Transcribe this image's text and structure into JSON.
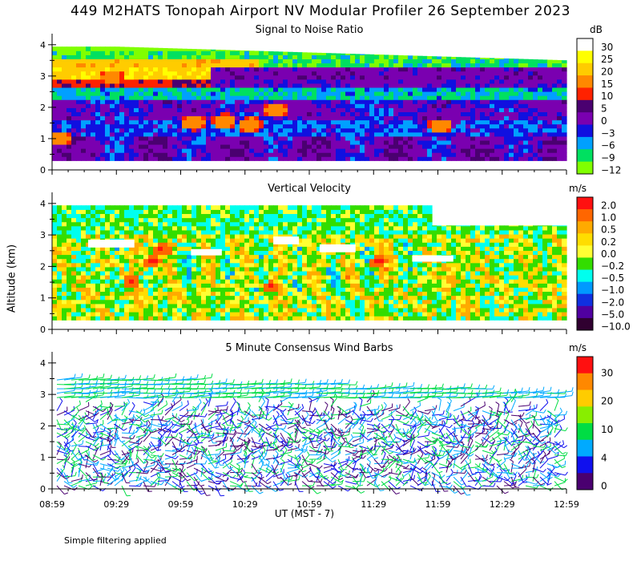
{
  "title": "449 M2HATS Tonopah Airport NV Modular Profiler 26 September 2023",
  "footnote": "Simple filtering applied",
  "ylabel": "Altitude (km)",
  "xlabel": "UT  (MST - 7)",
  "chart_data": [
    {
      "type": "heatmap",
      "title": "Signal to Noise Ratio",
      "unit": "dB",
      "x_ticks": [
        "08:59",
        "09:29",
        "09:59",
        "10:29",
        "10:59",
        "11:29",
        "11:59",
        "12:29",
        "12:59"
      ],
      "y_ticks": [
        "0",
        "1",
        "2",
        "3",
        "4"
      ],
      "ylim": [
        0,
        4.2
      ],
      "colorbar": {
        "labels": [
          "30",
          "25",
          "20",
          "15",
          "10",
          "5",
          "0",
          "−3",
          "−6",
          "−9",
          "−12"
        ],
        "colors": [
          "#ffffff",
          "#ffff00",
          "#ffcc00",
          "#ff8800",
          "#ff2200",
          "#4a0070",
          "#7a00b0",
          "#1010e0",
          "#00a0ff",
          "#00e060",
          "#80ff00"
        ]
      }
    },
    {
      "type": "heatmap",
      "title": "Vertical Velocity",
      "unit": "m/s",
      "x_ticks": [
        "08:59",
        "09:29",
        "09:59",
        "10:29",
        "10:59",
        "11:29",
        "11:59",
        "12:29",
        "12:59"
      ],
      "y_ticks": [
        "0",
        "1",
        "2",
        "3",
        "4"
      ],
      "ylim": [
        0,
        4.2
      ],
      "colorbar": {
        "labels": [
          "2.0",
          "1.0",
          "0.5",
          "0.2",
          "0.0",
          "−0.2",
          "−0.5",
          "−1.0",
          "−2.0",
          "−5.0",
          "−10.0"
        ],
        "colors": [
          "#ff1010",
          "#ff6600",
          "#ffaa00",
          "#ffdd00",
          "#ffff33",
          "#33dd00",
          "#00ffee",
          "#0099ff",
          "#1030e0",
          "#5000a0",
          "#300030"
        ]
      }
    },
    {
      "type": "scatter",
      "title": "5 Minute Consensus Wind Barbs",
      "unit": "m/s",
      "x_ticks": [
        "08:59",
        "09:29",
        "09:59",
        "10:29",
        "10:59",
        "11:29",
        "11:59",
        "12:29",
        "12:59"
      ],
      "y_ticks": [
        "0",
        "1",
        "2",
        "3",
        "4"
      ],
      "ylim": [
        0,
        4.2
      ],
      "colorbar": {
        "labels": [
          "30",
          "20",
          "10",
          "4",
          "0"
        ],
        "colors": [
          "#ff1010",
          "#ff8800",
          "#ffcc00",
          "#88ee00",
          "#00dd44",
          "#00aaff",
          "#1010ee",
          "#4a0070"
        ]
      }
    }
  ]
}
